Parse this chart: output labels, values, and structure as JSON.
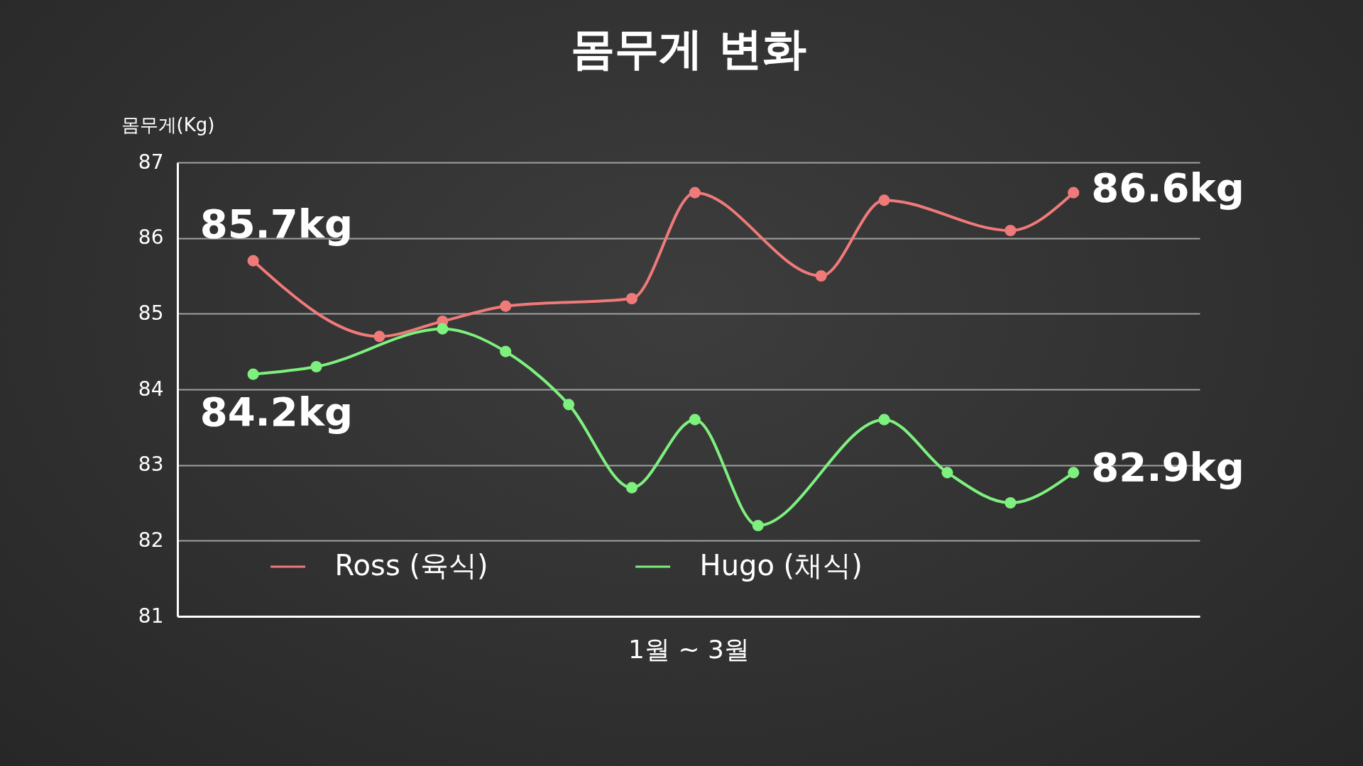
{
  "chart_data": {
    "type": "line",
    "title": "몸무게 변화",
    "ylabel": "몸무게(Kg)",
    "xlabel": "1월 ~ 3월",
    "categories": [
      null,
      null,
      null,
      null,
      null,
      null,
      null,
      null,
      null,
      null,
      null,
      null,
      null,
      null
    ],
    "ylim": [
      81,
      87
    ],
    "yticks": [
      81,
      82,
      83,
      84,
      85,
      86,
      87
    ],
    "grid": "y",
    "legend": "bottom",
    "marker": "circle",
    "line_style": "solid",
    "series": [
      {
        "name": "Ross (육식)",
        "color": "#f07a7a",
        "values": [
          85.7,
          null,
          84.7,
          84.9,
          85.1,
          null,
          85.2,
          86.6,
          null,
          85.5,
          86.5,
          null,
          86.1,
          86.6
        ]
      },
      {
        "name": "Hugo (채식)",
        "color": "#7ef07e",
        "values": [
          84.2,
          84.3,
          null,
          84.8,
          84.5,
          83.8,
          82.7,
          83.6,
          82.2,
          null,
          83.6,
          82.9,
          82.5,
          82.9
        ]
      }
    ],
    "annotations": [
      "85.7kg",
      "84.2kg",
      "86.6kg",
      "82.9kg"
    ]
  }
}
